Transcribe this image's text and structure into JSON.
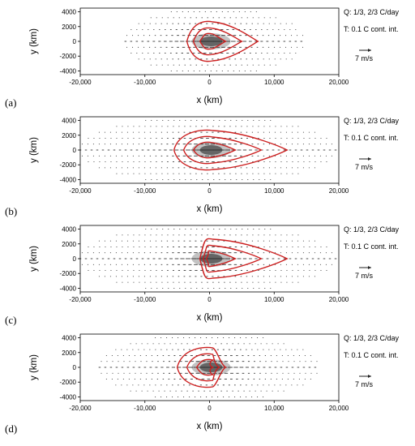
{
  "chart_data": [
    {
      "panel_label": "(a)",
      "type": "contour+vector",
      "xlabel": "x (km)",
      "ylabel": "y (km)",
      "xlim": [
        -20000,
        20000
      ],
      "ylim": [
        -4500,
        4500
      ],
      "xticks": [
        "-20,000",
        "-10,000",
        "0",
        "10,000",
        "20,000"
      ],
      "yticks": [
        "4000",
        "2000",
        "0",
        "-2000",
        "-4000"
      ],
      "annotations": [
        "Q: 1/3, 2/3 C/day",
        "T: 0.1 C cont. int."
      ],
      "vector_key": "7 m/s",
      "heating_center_x": 0,
      "temperature_contours_x_extent": [
        [
          -3500,
          7500
        ],
        [
          -2500,
          5000
        ],
        [
          -1500,
          2500
        ]
      ],
      "vector_field_x_extent": [
        -13000,
        15000
      ]
    },
    {
      "panel_label": "(b)",
      "type": "contour+vector",
      "xlabel": "x (km)",
      "ylabel": "y (km)",
      "xlim": [
        -20000,
        20000
      ],
      "ylim": [
        -4500,
        4500
      ],
      "xticks": [
        "-20,000",
        "-10,000",
        "0",
        "10,000",
        "20,000"
      ],
      "yticks": [
        "4000",
        "2000",
        "0",
        "-2000",
        "-4000"
      ],
      "annotations": [
        "Q: 1/3, 2/3 C/day",
        "T: 0.1 C cont. int."
      ],
      "vector_key": "7 m/s",
      "heating_center_x": 0,
      "temperature_contours_x_extent": [
        [
          -5500,
          12000
        ],
        [
          -4000,
          8000
        ],
        [
          -2500,
          4000
        ]
      ],
      "vector_field_x_extent": [
        -20000,
        20000
      ]
    },
    {
      "panel_label": "(c)",
      "type": "contour+vector",
      "xlabel": "x (km)",
      "ylabel": "y (km)",
      "xlim": [
        -20000,
        20000
      ],
      "ylim": [
        -4500,
        4500
      ],
      "xticks": [
        "-20,000",
        "-10,000",
        "0",
        "10,000",
        "20,000"
      ],
      "yticks": [
        "4000",
        "2000",
        "0",
        "-2000",
        "-4000"
      ],
      "annotations": [
        "Q: 1/3, 2/3 C/day",
        "T: 0.1 C cont. int."
      ],
      "vector_key": "7 m/s",
      "heating_center_x": 0,
      "temperature_contours_x_extent": [
        [
          -1500,
          12000
        ],
        [
          -1000,
          8000
        ],
        [
          -500,
          4000
        ]
      ],
      "vector_field_x_extent": [
        -20000,
        20000
      ]
    },
    {
      "panel_label": "(d)",
      "type": "contour+vector",
      "xlabel": "x (km)",
      "ylabel": "y (km)",
      "xlim": [
        -20000,
        20000
      ],
      "ylim": [
        -4500,
        4500
      ],
      "xticks": [
        "-20,000",
        "-10,000",
        "0",
        "10,000",
        "20,000"
      ],
      "yticks": [
        "4000",
        "2000",
        "0",
        "-2000",
        "-4000"
      ],
      "annotations": [
        "Q: 1/3, 2/3 C/day",
        "T: 0.1 C cont. int."
      ],
      "vector_key": "7 m/s",
      "heating_center_x": 0,
      "temperature_contours_x_extent": [
        [
          -5000,
          2500
        ],
        [
          -3500,
          1500
        ],
        [
          -2000,
          500
        ]
      ],
      "vector_field_x_extent": [
        -17000,
        17000
      ]
    }
  ],
  "colors": {
    "contour": "#cc1f1f",
    "heating_dark": "#555555",
    "heating_light": "#b8b8b8",
    "vectors": "#222222",
    "axes": "#000000"
  }
}
